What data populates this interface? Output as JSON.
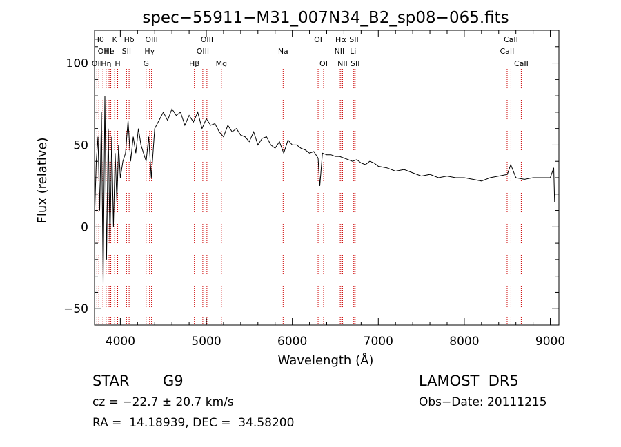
{
  "chart_data": {
    "type": "line",
    "title": "spec−55911−M31_007N34_B2_sp08−065.fits",
    "xlabel": "Wavelength (Å)",
    "ylabel": "Flux (relative)",
    "xlim": [
      3700,
      9100
    ],
    "ylim": [
      -60,
      120
    ],
    "xticks": [
      4000,
      5000,
      6000,
      7000,
      8000,
      9000
    ],
    "yticks": [
      -50,
      0,
      50,
      100
    ],
    "grid": false,
    "line_color": "#000000",
    "marker_color": "#cc0000",
    "spectrum_x": [
      3700,
      3720,
      3740,
      3760,
      3780,
      3800,
      3820,
      3840,
      3860,
      3880,
      3900,
      3920,
      3940,
      3960,
      3980,
      4000,
      4030,
      4060,
      4090,
      4120,
      4150,
      4180,
      4210,
      4240,
      4270,
      4300,
      4330,
      4360,
      4400,
      4450,
      4500,
      4550,
      4600,
      4650,
      4700,
      4750,
      4800,
      4850,
      4900,
      4950,
      5000,
      5050,
      5100,
      5150,
      5200,
      5250,
      5300,
      5350,
      5400,
      5450,
      5500,
      5550,
      5600,
      5650,
      5700,
      5750,
      5800,
      5850,
      5900,
      5950,
      6000,
      6050,
      6100,
      6150,
      6200,
      6250,
      6300,
      6320,
      6350,
      6400,
      6450,
      6500,
      6550,
      6600,
      6650,
      6700,
      6750,
      6800,
      6850,
      6900,
      6950,
      7000,
      7100,
      7200,
      7300,
      7400,
      7500,
      7600,
      7700,
      7800,
      7900,
      8000,
      8100,
      8200,
      8300,
      8400,
      8500,
      8540,
      8600,
      8700,
      8800,
      8900,
      9000,
      9040,
      9050
    ],
    "spectrum_y": [
      5,
      40,
      55,
      10,
      70,
      -35,
      80,
      -20,
      60,
      -10,
      55,
      0,
      45,
      15,
      50,
      30,
      40,
      45,
      65,
      40,
      55,
      45,
      60,
      50,
      45,
      40,
      55,
      30,
      60,
      65,
      70,
      65,
      72,
      68,
      70,
      62,
      68,
      64,
      70,
      60,
      66,
      62,
      63,
      58,
      55,
      62,
      58,
      60,
      56,
      55,
      52,
      58,
      50,
      54,
      55,
      50,
      48,
      52,
      45,
      53,
      50,
      50,
      48,
      47,
      45,
      46,
      42,
      25,
      45,
      44,
      44,
      43,
      43,
      42,
      41,
      40,
      41,
      39,
      38,
      40,
      39,
      37,
      36,
      34,
      35,
      33,
      31,
      32,
      30,
      31,
      30,
      30,
      29,
      28,
      30,
      31,
      32,
      38,
      30,
      29,
      30,
      30,
      30,
      36,
      15
    ],
    "lines": [
      {
        "wl": 3727,
        "row": 2,
        "label": "OII"
      },
      {
        "wl": 3750,
        "row": 0,
        "label": "Hθ"
      },
      {
        "wl": 3798,
        "row": 1,
        "label": "OII"
      },
      {
        "wl": 3835,
        "row": 2,
        "label": "Hη"
      },
      {
        "wl": 3869,
        "row": 1,
        "label": "He"
      },
      {
        "wl": 3889,
        "row": 1,
        "label": "I"
      },
      {
        "wl": 3934,
        "row": 0,
        "label": "K"
      },
      {
        "wl": 3969,
        "row": 2,
        "label": "H"
      },
      {
        "wl": 4072,
        "row": 1,
        "label": "SII"
      },
      {
        "wl": 4102,
        "row": 0,
        "label": "Hδ"
      },
      {
        "wl": 4300,
        "row": 2,
        "label": "G"
      },
      {
        "wl": 4340,
        "row": 1,
        "label": "Hγ"
      },
      {
        "wl": 4363,
        "row": 0,
        "label": "OIII"
      },
      {
        "wl": 4861,
        "row": 2,
        "label": "Hβ"
      },
      {
        "wl": 4959,
        "row": 1,
        "label": "OIII"
      },
      {
        "wl": 5007,
        "row": 0,
        "label": "OIII"
      },
      {
        "wl": 5175,
        "row": 2,
        "label": "Mg"
      },
      {
        "wl": 5893,
        "row": 1,
        "label": "Na"
      },
      {
        "wl": 6300,
        "row": 0,
        "label": "OI"
      },
      {
        "wl": 6364,
        "row": 2,
        "label": "OI"
      },
      {
        "wl": 6548,
        "row": 1,
        "label": "NII"
      },
      {
        "wl": 6563,
        "row": 0,
        "label": "Hα"
      },
      {
        "wl": 6584,
        "row": 2,
        "label": "NII"
      },
      {
        "wl": 6707,
        "row": 1,
        "label": "Li"
      },
      {
        "wl": 6717,
        "row": 0,
        "label": "SII"
      },
      {
        "wl": 6731,
        "row": 2,
        "label": "SII"
      },
      {
        "wl": 8498,
        "row": 1,
        "label": "CaII"
      },
      {
        "wl": 8542,
        "row": 0,
        "label": "CaII"
      },
      {
        "wl": 8662,
        "row": 2,
        "label": "CaII"
      }
    ]
  },
  "info": {
    "class": "STAR",
    "subclass": "G9",
    "survey": "LAMOST  DR5",
    "redshift": "cz = −22.7 ± 20.7 km/s",
    "obs_date": "Obs−Date: 20111215",
    "coords": "RA =  14.18939, DEC =  34.58200"
  }
}
